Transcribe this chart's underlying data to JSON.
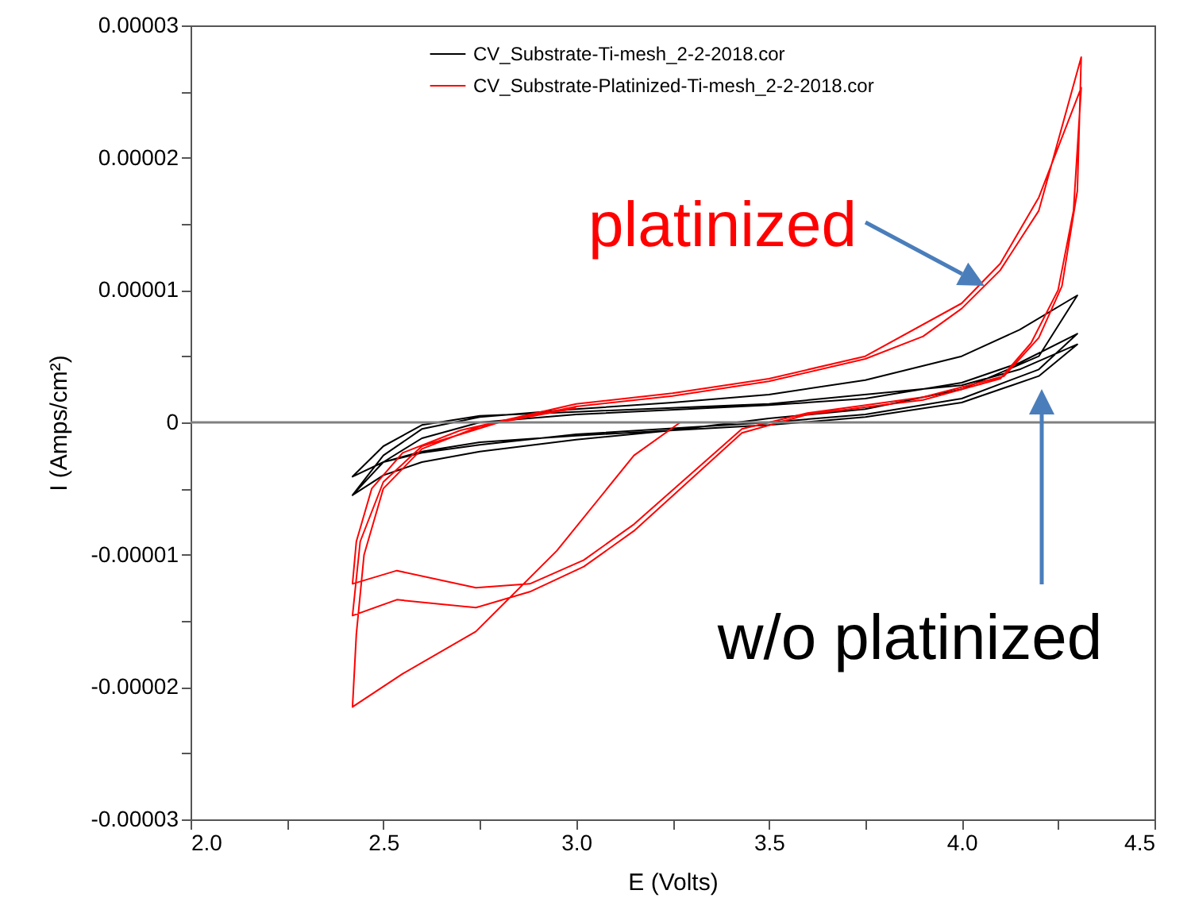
{
  "chart_data": {
    "type": "line",
    "xlabel": "E (Volts)",
    "ylabel": "I (Amps/cm²)",
    "xlim": [
      2.0,
      4.5
    ],
    "ylim": [
      -3e-05,
      3e-05
    ],
    "xticks": [
      {
        "value": 2.0,
        "label": "2.0"
      },
      {
        "value": 2.25,
        "label": null
      },
      {
        "value": 2.5,
        "label": "2.5"
      },
      {
        "value": 2.75,
        "label": null
      },
      {
        "value": 3.0,
        "label": "3.0"
      },
      {
        "value": 3.25,
        "label": null
      },
      {
        "value": 3.5,
        "label": "3.5"
      },
      {
        "value": 3.75,
        "label": null
      },
      {
        "value": 4.0,
        "label": "4.0"
      },
      {
        "value": 4.25,
        "label": null
      },
      {
        "value": 4.5,
        "label": "4.5"
      }
    ],
    "yticks": [
      {
        "value": -3e-05,
        "label": "-0.00003"
      },
      {
        "value": -2.5e-05,
        "label": null
      },
      {
        "value": -2e-05,
        "label": "-0.00002"
      },
      {
        "value": -1.5e-05,
        "label": null
      },
      {
        "value": -1e-05,
        "label": "-0.00001"
      },
      {
        "value": -5e-06,
        "label": null
      },
      0,
      {
        "value": 5e-06,
        "label": null
      },
      {
        "value": 1e-05,
        "label": "0.00001"
      },
      {
        "value": 1.5e-05,
        "label": null
      },
      {
        "value": 2e-05,
        "label": "0.00002"
      },
      {
        "value": 2.5e-05,
        "label": null
      },
      {
        "value": 3e-05,
        "label": "0.00003"
      }
    ],
    "grid": false,
    "legend": "top",
    "line_style": "solid",
    "marker": "none",
    "ref_lines": [
      {
        "axis": "y",
        "value": 0,
        "color": "#808080"
      }
    ],
    "annotations": [
      "platinized",
      "w/o platinized"
    ],
    "series": [
      {
        "name": "CV_Substrate-Ti-mesh_2-2-2018.cor",
        "color": "#000000",
        "x": [
          2.42,
          2.5,
          2.6,
          2.75,
          3.0,
          3.25,
          3.5,
          3.75,
          4.0,
          4.15,
          4.3,
          4.2,
          4.0,
          3.75,
          3.5,
          3.25,
          3.0,
          2.75,
          2.6,
          2.5,
          2.42,
          2.5,
          2.6,
          2.75,
          3.0,
          3.5,
          3.75,
          4.0,
          4.15,
          4.3,
          4.2,
          4.0,
          3.75,
          3.5,
          3.0,
          2.75,
          2.6,
          2.5,
          2.42,
          2.5,
          2.6,
          2.75,
          3.0,
          3.5,
          4.0,
          4.15,
          4.3,
          4.2,
          4.0,
          3.75,
          3.5,
          3.0,
          2.75,
          2.6,
          2.5,
          2.42
        ],
        "values": [
          -5.5e-06,
          -2.5e-06,
          -5e-07,
          4e-07,
          1e-06,
          1.5e-06,
          2.1e-06,
          3.2e-06,
          5e-06,
          7e-06,
          9.6e-06,
          5e-06,
          2.5e-06,
          1e-06,
          3e-07,
          -6e-07,
          -1.3e-06,
          -2.2e-06,
          -3e-06,
          -4e-06,
          -5.5e-06,
          -3e-06,
          -1.2e-06,
          0.0,
          6e-07,
          1.3e-06,
          1.8e-06,
          3e-06,
          4.5e-06,
          6.7e-06,
          4e-06,
          1.8e-06,
          6e-07,
          0.0,
          -9e-07,
          -1.7e-06,
          -2.3e-06,
          -3e-06,
          -4.1e-06,
          -1.8e-06,
          -2e-07,
          5e-07,
          8e-07,
          1.4e-06,
          2.8e-06,
          4e-06,
          5.9e-06,
          3.5e-06,
          1.5e-06,
          4e-07,
          -2e-07,
          -1e-06,
          -1.5e-06,
          -2.2e-06,
          -3e-06,
          -4.1e-06
        ]
      },
      {
        "name": "CV_Substrate-Platinized-Ti-mesh_2-2-2018.cor",
        "color": "#ff0000",
        "x": [
          3.27,
          3.15,
          2.95,
          2.74,
          2.55,
          2.42,
          2.43,
          2.45,
          2.5,
          2.6,
          2.75,
          3.0,
          3.25,
          3.5,
          3.75,
          3.9,
          4.0,
          4.1,
          4.2,
          4.31,
          4.3,
          4.26,
          4.2,
          4.11,
          3.9,
          3.6,
          3.43,
          3.29,
          3.15,
          3.02,
          2.88,
          2.74,
          2.535,
          2.42,
          2.43,
          2.47,
          2.55,
          2.7,
          3.0,
          3.25,
          3.5,
          3.75,
          4.0,
          4.1,
          4.2,
          4.31,
          4.29,
          4.25,
          4.18,
          4.1,
          3.9,
          3.6,
          3.43,
          3.29,
          3.15,
          3.02,
          2.88,
          2.74,
          2.535,
          2.42,
          2.44,
          2.5,
          2.6,
          2.8,
          3.0
        ],
        "values": [
          0.0,
          -2.5e-06,
          -9.7e-06,
          -1.58e-05,
          -1.9e-05,
          -2.15e-05,
          -1.6e-05,
          -1e-05,
          -5e-06,
          -2e-06,
          -3e-07,
          1.2e-06,
          2e-06,
          3.1e-06,
          4.8e-06,
          6.5e-06,
          8.6e-06,
          1.15e-05,
          1.6e-05,
          2.76e-05,
          1.75e-05,
          1.03e-05,
          6.4e-06,
          3.5e-06,
          1.9e-06,
          7e-07,
          -5e-07,
          -4.1e-06,
          -7.7e-06,
          -1.04e-05,
          -1.22e-05,
          -1.25e-05,
          -1.12e-05,
          -1.22e-05,
          -9e-06,
          -5e-06,
          -2.3e-06,
          -6e-07,
          1.4e-06,
          2.2e-06,
          3.3e-06,
          5e-06,
          9e-06,
          1.2e-05,
          1.7e-05,
          2.53e-05,
          1.6e-05,
          1e-05,
          6e-06,
          3.3e-06,
          1.7e-06,
          6e-07,
          -8e-07,
          -4.5e-06,
          -8.2e-06,
          -1.09e-05,
          -1.28e-05,
          -1.4e-05,
          -1.34e-05,
          -1.46e-05,
          -9e-06,
          -4.5e-06,
          -1.8e-06,
          0.0,
          1.1e-06
        ]
      }
    ]
  }
}
